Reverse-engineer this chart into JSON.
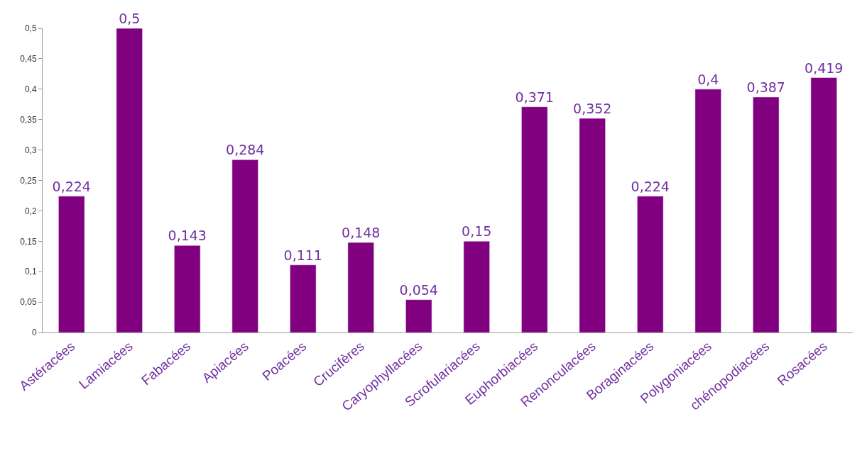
{
  "chart_data": {
    "type": "bar",
    "categories": [
      "Astéracées",
      "Lamiacées",
      "Fabacées",
      "Apiacées",
      "Poacées",
      "Crucifères",
      "Caryophyllacées",
      "Scrofulariacées",
      "Euphorbiacées",
      "Renonculacées",
      "Boraginacées",
      "Polygoniacées",
      "chénopodiacées",
      "Rosacées"
    ],
    "values": [
      0.224,
      0.5,
      0.143,
      0.284,
      0.111,
      0.148,
      0.054,
      0.15,
      0.371,
      0.352,
      0.224,
      0.4,
      0.387,
      0.419
    ],
    "value_labels": [
      "0,224",
      "0,5",
      "0,143",
      "0,284",
      "0,111",
      "0,148",
      "0,054",
      "0,15",
      "0,371",
      "0,352",
      "0,224",
      "0,4",
      "0,387",
      "0,419"
    ],
    "color": "#800080",
    "ylim": [
      0,
      0.5
    ],
    "yticks": [
      {
        "value": 0,
        "label": "0"
      },
      {
        "value": 0.05,
        "label": "0,05"
      },
      {
        "value": 0.1,
        "label": "0,1"
      },
      {
        "value": 0.15,
        "label": "0,15"
      },
      {
        "value": 0.2,
        "label": "0,2"
      },
      {
        "value": 0.25,
        "label": "0,25"
      },
      {
        "value": 0.3,
        "label": "0,3"
      },
      {
        "value": 0.35,
        "label": "0,35"
      },
      {
        "value": 0.4,
        "label": "0,4"
      },
      {
        "value": 0.45,
        "label": "0,45"
      },
      {
        "value": 0.5,
        "label": "0,5"
      }
    ],
    "legend": false
  }
}
